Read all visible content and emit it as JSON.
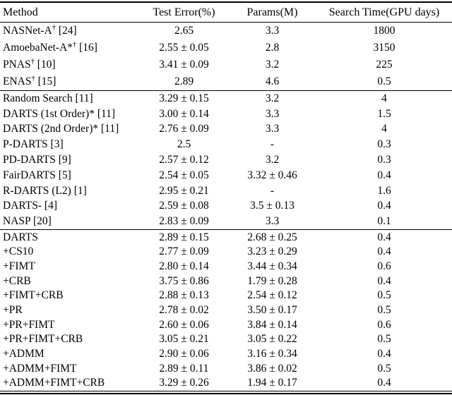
{
  "colors": {
    "background": "#ffffff",
    "text": "#000000",
    "rule": "#000000"
  },
  "table": {
    "columns": [
      "Method",
      "Test Error(%)",
      "Params(M)",
      "Search Time(GPU days)"
    ],
    "sections": [
      {
        "rows": [
          {
            "method": {
              "name": "NASNet-A",
              "sup": "†",
              "ref": "[24]"
            },
            "test_error": "2.65",
            "params": "3.3",
            "search_time": "1800"
          },
          {
            "method": {
              "name": "AmoebaNet-A*",
              "sup": "†",
              "ref": "[16]"
            },
            "test_error": "2.55 ± 0.05",
            "params": "2.8",
            "search_time": "3150"
          },
          {
            "method": {
              "name": "PNAS",
              "sup": "†",
              "ref": "[10]"
            },
            "test_error": "3.41 ± 0.09",
            "params": "3.2",
            "search_time": "225"
          },
          {
            "method": {
              "name": "ENAS",
              "sup": "†",
              "ref": "[15]"
            },
            "test_error": "2.89",
            "params": "4.6",
            "search_time": "0.5"
          }
        ]
      },
      {
        "rows": [
          {
            "method": {
              "name": "Random Search",
              "sup": "",
              "ref": "[11]"
            },
            "test_error": "3.29 ± 0.15",
            "params": "3.2",
            "search_time": "4"
          },
          {
            "method": {
              "name": "DARTS (1st Order)*",
              "sup": "",
              "ref": "[11]"
            },
            "test_error": "3.00 ± 0.14",
            "params": "3.3",
            "search_time": "1.5"
          },
          {
            "method": {
              "name": "DARTS (2nd Order)*",
              "sup": "",
              "ref": "[11]"
            },
            "test_error": "2.76 ± 0.09",
            "params": "3.3",
            "search_time": "4"
          },
          {
            "method": {
              "name": "P-DARTS",
              "sup": "",
              "ref": "[3]"
            },
            "test_error": "2.5",
            "params": "-",
            "search_time": "0.3"
          },
          {
            "method": {
              "name": "PD-DARTS",
              "sup": "",
              "ref": "[9]"
            },
            "test_error": "2.57 ± 0.12",
            "params": "3.2",
            "search_time": "0.3"
          },
          {
            "method": {
              "name": "FairDARTS",
              "sup": "",
              "ref": "[5]"
            },
            "test_error": "2.54 ± 0.05",
            "params": "3.32 ± 0.46",
            "search_time": "0.4"
          },
          {
            "method": {
              "name": "R-DARTS (L2)",
              "sup": "",
              "ref": "[1]"
            },
            "test_error": "2.95 ± 0.21",
            "params": "-",
            "search_time": "1.6"
          },
          {
            "method": {
              "name": "DARTS-",
              "sup": "",
              "ref": "[4]"
            },
            "test_error": "2.59 ± 0.08",
            "params": "3.5 ± 0.13",
            "search_time": "0.4"
          },
          {
            "method": {
              "name": "NASP",
              "sup": "",
              "ref": "[20]"
            },
            "test_error": "2.83 ± 0.09",
            "params": "3.3",
            "search_time": "0.1"
          }
        ]
      },
      {
        "rows": [
          {
            "method": {
              "name": "DARTS",
              "sup": "",
              "ref": ""
            },
            "test_error": "2.89 ± 0.15",
            "params": "2.68 ± 0.25",
            "search_time": "0.4"
          },
          {
            "method": {
              "name": "+CS10",
              "sup": "",
              "ref": ""
            },
            "test_error": "2.77 ± 0.09",
            "params": "3.23 ± 0.29",
            "search_time": "0.4"
          },
          {
            "method": {
              "name": "+FIMT",
              "sup": "",
              "ref": ""
            },
            "test_error": "2.80 ± 0.14",
            "params": "3.44 ± 0.34",
            "search_time": "0.6"
          },
          {
            "method": {
              "name": "+CRB",
              "sup": "",
              "ref": ""
            },
            "test_error": "3.75 ± 0.86",
            "params": "1.79 ± 0.28",
            "search_time": "0.4"
          },
          {
            "method": {
              "name": "+FIMT+CRB",
              "sup": "",
              "ref": ""
            },
            "test_error": "2.88 ± 0.13",
            "params": "2.54 ± 0.12",
            "search_time": "0.5"
          },
          {
            "method": {
              "name": "+PR",
              "sup": "",
              "ref": ""
            },
            "test_error": "2.78 ± 0.02",
            "params": "3.50 ± 0.17",
            "search_time": "0.5"
          },
          {
            "method": {
              "name": "+PR+FIMT",
              "sup": "",
              "ref": ""
            },
            "test_error": "2.60 ± 0.06",
            "params": "3.84 ± 0.14",
            "search_time": "0.6"
          },
          {
            "method": {
              "name": "+PR+FIMT+CRB",
              "sup": "",
              "ref": ""
            },
            "test_error": "3.05 ± 0.21",
            "params": "3.05 ± 0.22",
            "search_time": "0.5"
          },
          {
            "method": {
              "name": "+ADMM",
              "sup": "",
              "ref": ""
            },
            "test_error": "2.90 ± 0.06",
            "params": "3.16 ± 0.34",
            "search_time": "0.4"
          },
          {
            "method": {
              "name": "+ADMM+FIMT",
              "sup": "",
              "ref": ""
            },
            "test_error": "2.89 ± 0.11",
            "params": "3.86 ± 0.02",
            "search_time": "0.5"
          },
          {
            "method": {
              "name": "+ADMM+FIMT+CRB",
              "sup": "",
              "ref": ""
            },
            "test_error": "3.29 ± 0.26",
            "params": "1.94 ± 0.17",
            "search_time": "0.4"
          }
        ]
      }
    ]
  }
}
